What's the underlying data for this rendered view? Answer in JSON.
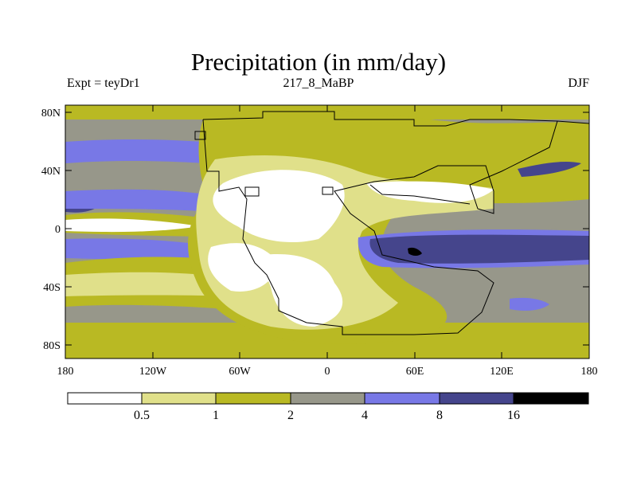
{
  "title": "Precipitation (in mm/day)",
  "subtitle_left": "Expt = teyDr1",
  "subtitle_center": "217_8_MaBP",
  "subtitle_right": "DJF",
  "lat_ticks": [
    "80N",
    "40N",
    "0",
    "40S",
    "80S"
  ],
  "lon_ticks": [
    "180",
    "120W",
    "60W",
    "0",
    "60E",
    "120E",
    "180"
  ],
  "colorbar": {
    "labels": [
      "0.5",
      "1",
      "2",
      "4",
      "8",
      "16"
    ],
    "colors": [
      "#ffffff",
      "#e0e08a",
      "#b9b923",
      "#97978a",
      "#7878e6",
      "#45458c",
      "#000000"
    ]
  }
}
